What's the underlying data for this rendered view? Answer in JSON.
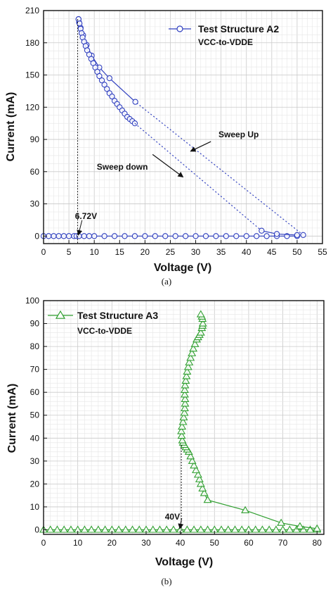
{
  "chart_data": [
    {
      "type": "scatter",
      "panel_label": "(a)",
      "xlabel": "Voltage (V)",
      "ylabel": "Current (mA)",
      "xlim": [
        0,
        55
      ],
      "ylim": [
        -7,
        210
      ],
      "xticks": [
        0,
        5,
        10,
        15,
        20,
        25,
        30,
        35,
        40,
        45,
        50,
        55
      ],
      "yticks": [
        0,
        30,
        60,
        90,
        120,
        150,
        180,
        210
      ],
      "grid": true,
      "color": "#2f3fbf",
      "marker": "circle",
      "legend": {
        "position": "top-right",
        "label": "Test Structure A2",
        "subtitle": "VCC-to-VDDE"
      },
      "series": [
        {
          "name": "Test Structure A2",
          "segments": [
            {
              "style": "solid",
              "x": [
                0,
                1,
                2,
                3,
                4,
                5,
                6,
                6.5,
                7,
                8,
                9,
                10,
                12,
                14,
                16,
                18,
                20,
                22,
                24,
                26,
                28,
                30,
                32,
                34,
                36,
                38,
                40,
                42,
                44,
                46,
                48,
                50
              ],
              "y": [
                0,
                0,
                0,
                0,
                0,
                0,
                0,
                0,
                0,
                0,
                0,
                0,
                0,
                0,
                0,
                0,
                0,
                0,
                0,
                0,
                0,
                0,
                0,
                0,
                0,
                0,
                0,
                0,
                0,
                0,
                0,
                0
              ]
            },
            {
              "style": "dotted",
              "x": [
                51.2,
                18.1
              ],
              "y": [
                1,
                125
              ]
            },
            {
              "style": "solid",
              "x": [
                18.1,
                13.0,
                11.0,
                9.5,
                8.5,
                7.8,
                7.3,
                7.0,
                6.9
              ],
              "y": [
                125,
                147,
                157,
                168,
                178,
                187,
                194,
                199,
                202
              ]
            },
            {
              "style": "solid",
              "x": [
                6.9,
                7.1,
                7.3,
                7.5,
                7.7,
                8.0,
                8.3,
                8.6,
                9.0,
                9.4,
                9.8,
                10.2,
                10.6,
                11.0,
                11.5,
                12.0,
                12.5,
                13.0,
                13.5,
                14.0,
                14.5,
                15.0,
                15.5,
                16.0,
                16.5,
                17.0,
                17.5,
                18.0
              ],
              "y": [
                202,
                198,
                193,
                189,
                185,
                181,
                177,
                173,
                169,
                165,
                161,
                157,
                153,
                149,
                145,
                141,
                137,
                133,
                130,
                126,
                123,
                120,
                117,
                114,
                111,
                109,
                107,
                105
              ]
            },
            {
              "style": "dotted",
              "x": [
                18.0,
                43.0
              ],
              "y": [
                105,
                5
              ]
            },
            {
              "style": "solid",
              "x": [
                43.0,
                46.0,
                50.0,
                51.2
              ],
              "y": [
                5,
                2,
                1,
                1
              ]
            }
          ]
        }
      ],
      "annotations": [
        {
          "text": "Sweep Up",
          "x": 34.5,
          "y": 92,
          "arrow_from": [
            33.0,
            88
          ],
          "arrow_to": [
            29.0,
            79
          ]
        },
        {
          "text": "Sweep down",
          "x": 10.5,
          "y": 62,
          "arrow_from": [
            21.5,
            76
          ],
          "arrow_to": [
            27.5,
            55
          ]
        },
        {
          "text": "6.72V",
          "x": 6.2,
          "y": 16,
          "vline_x": 6.72
        }
      ]
    },
    {
      "type": "scatter",
      "panel_label": "(b)",
      "xlabel": "Voltage (V)",
      "ylabel": "Current (mA)",
      "xlim": [
        0,
        82
      ],
      "ylim": [
        -2,
        100
      ],
      "xticks": [
        0,
        10,
        20,
        30,
        40,
        50,
        60,
        70,
        80
      ],
      "yticks": [
        0,
        10,
        20,
        30,
        40,
        50,
        60,
        70,
        80,
        90,
        100
      ],
      "grid": true,
      "color": "#2e9e2e",
      "marker": "triangle",
      "legend": {
        "position": "top-left",
        "label": "Test Structure A3",
        "subtitle": "VCC-to-VDDE"
      },
      "series": [
        {
          "name": "Test Structure A3",
          "segments": [
            {
              "style": "solid",
              "x": [
                0,
                2,
                4,
                6,
                8,
                10,
                12,
                14,
                16,
                18,
                20,
                22,
                24,
                26,
                28,
                30,
                32,
                34,
                36,
                38,
                40,
                42,
                44,
                46,
                48,
                50,
                52,
                54,
                56,
                58,
                60,
                62,
                64,
                66,
                68,
                70,
                72,
                74,
                76,
                78,
                80
              ],
              "y": [
                0,
                0,
                0,
                0,
                0,
                0,
                0,
                0,
                0,
                0,
                0,
                0,
                0,
                0,
                0,
                0,
                0,
                0,
                0,
                0,
                0,
                0,
                0,
                0,
                0,
                0,
                0,
                0,
                0,
                0,
                0,
                0,
                0,
                0,
                0,
                0,
                0,
                0,
                0,
                0,
                0
              ]
            },
            {
              "style": "solid",
              "x": [
                80.0,
                75.0,
                69.5,
                59.0,
                48.0,
                47.0,
                46.5,
                46.0,
                45.6,
                45.2,
                44.6,
                44.0,
                43.5,
                43.0,
                42.5,
                42.0,
                41.6,
                41.2,
                40.8,
                40.6,
                40.4,
                40.3,
                40.5,
                40.8,
                41.0,
                41.2,
                41.3,
                41.4,
                41.4,
                41.3,
                41.3,
                41.4,
                41.6,
                41.8,
                42.0,
                42.3,
                42.6,
                43.0,
                43.4,
                43.8,
                44.3,
                44.8,
                45.2,
                45.6,
                46.0,
                46.3,
                46.5,
                46.6,
                46.5,
                46.3,
                46.0
              ],
              "y": [
                0.5,
                1.5,
                3,
                8.5,
                13,
                16,
                18,
                20,
                22,
                24,
                26,
                28,
                30,
                32,
                34,
                35,
                36,
                37,
                38,
                39,
                41,
                43,
                45,
                47,
                49,
                51,
                53,
                55,
                57,
                59,
                61,
                63,
                65,
                67,
                69,
                71,
                73,
                75,
                77,
                79,
                81,
                83,
                84,
                85,
                86,
                88,
                89,
                90,
                92,
                93,
                94
              ]
            }
          ]
        }
      ],
      "annotations": [
        {
          "text": "40V",
          "x": 35.5,
          "y": 4.5,
          "vline_x": 40.3
        }
      ]
    }
  ]
}
